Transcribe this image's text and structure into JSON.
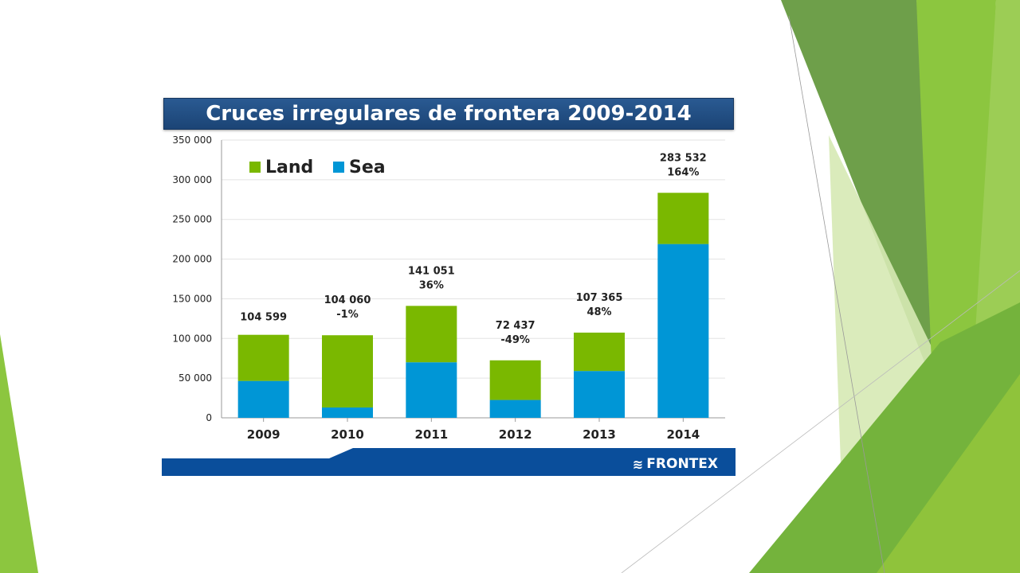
{
  "slide": {
    "brand": "FRONTEX",
    "colors": {
      "land": "#7ab800",
      "sea": "#0096d6",
      "title_bg": "#1f4e82",
      "footer": "#0a4e9b",
      "accent": "#8cc63f"
    }
  },
  "chart_data": {
    "type": "bar",
    "stacked": true,
    "title": "Cruces irregulares de frontera 2009-2014",
    "categories": [
      "2009",
      "2010",
      "2011",
      "2012",
      "2013",
      "2014"
    ],
    "series": [
      {
        "name": "Sea",
        "values": [
          46500,
          13000,
          70000,
          22500,
          59000,
          219000
        ]
      },
      {
        "name": "Land",
        "values": [
          58099,
          91060,
          71051,
          49937,
          48365,
          64532
        ]
      }
    ],
    "totals": [
      104599,
      104060,
      141051,
      72437,
      107365,
      283532
    ],
    "total_labels": [
      "104 599",
      "104 060",
      "141 051",
      "72 437",
      "107 365",
      "283 532"
    ],
    "change_labels": [
      "",
      "-1%",
      "36%",
      "-49%",
      "48%",
      "164%"
    ],
    "yticks": [
      "0",
      "50 000",
      "100 000",
      "150 000",
      "200 000",
      "250 000",
      "300 000",
      "350 000"
    ],
    "ylim": [
      0,
      350000
    ],
    "grid": true,
    "legend_position": "top-left"
  }
}
